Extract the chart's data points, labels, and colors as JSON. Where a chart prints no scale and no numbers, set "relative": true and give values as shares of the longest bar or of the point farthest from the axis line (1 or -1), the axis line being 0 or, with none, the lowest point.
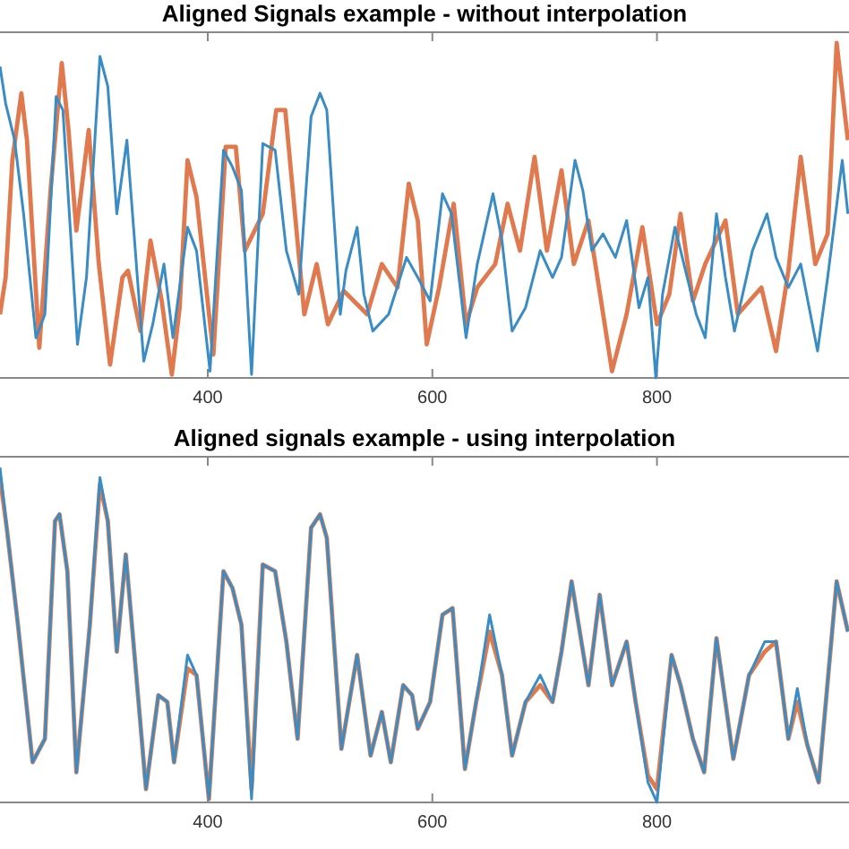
{
  "chart_data": [
    {
      "type": "line",
      "title": "Aligned Signals example - without interpolation",
      "relative": true,
      "tick_labels": "x",
      "xlim": [
        215,
        971
      ],
      "xticks": [
        400,
        600,
        800
      ],
      "series": [
        {
          "color": "#3a8cc4",
          "x": [
            215,
            220,
            228,
            236,
            247,
            255,
            265,
            271,
            284,
            292,
            304,
            311,
            319,
            328,
            333,
            343,
            351,
            361,
            369,
            382,
            390,
            402,
            414,
            422,
            430,
            439,
            449,
            460,
            470,
            481,
            492,
            500,
            506,
            518,
            523,
            533,
            539,
            547,
            561,
            577,
            587,
            598,
            609,
            617,
            630,
            640,
            654,
            662,
            671,
            683,
            696,
            707,
            715,
            727,
            734,
            742,
            752,
            763,
            773,
            784,
            792,
            799,
            805,
            816,
            824,
            835,
            843,
            853,
            861,
            869,
            885,
            898,
            906,
            917,
            928,
            943,
            952,
            965,
            970
          ],
          "values": [
            0.93,
            0.82,
            0.71,
            0.49,
            0.12,
            0.19,
            0.84,
            0.8,
            0.1,
            0.3,
            0.96,
            0.87,
            0.49,
            0.71,
            0.49,
            0.05,
            0.16,
            0.34,
            0.12,
            0.45,
            0.38,
            0.02,
            0.68,
            0.63,
            0.56,
            0.01,
            0.7,
            0.68,
            0.38,
            0.25,
            0.78,
            0.85,
            0.8,
            0.19,
            0.32,
            0.45,
            0.25,
            0.14,
            0.19,
            0.36,
            0.3,
            0.23,
            0.55,
            0.49,
            0.12,
            0.34,
            0.55,
            0.41,
            0.14,
            0.21,
            0.38,
            0.3,
            0.36,
            0.65,
            0.56,
            0.38,
            0.43,
            0.36,
            0.47,
            0.21,
            0.3,
            0,
            0.25,
            0.45,
            0.34,
            0.19,
            0.12,
            0.49,
            0.3,
            0.14,
            0.38,
            0.49,
            0.36,
            0.27,
            0.34,
            0.08,
            0.3,
            0.65,
            0.49
          ]
        },
        {
          "color": "#e07a4e",
          "x": [
            215,
            220,
            226,
            234,
            239,
            250,
            260,
            270,
            276,
            283,
            294,
            303,
            313,
            324,
            329,
            340,
            349,
            359,
            368,
            375,
            382,
            390,
            405,
            416,
            425,
            433,
            449,
            461,
            469,
            486,
            497,
            507,
            521,
            542,
            555,
            569,
            579,
            587,
            595,
            606,
            619,
            630,
            640,
            656,
            667,
            678,
            691,
            702,
            715,
            726,
            739,
            747,
            760,
            773,
            787,
            800,
            811,
            821,
            832,
            843,
            861,
            872,
            893,
            906,
            917,
            928,
            941,
            952,
            960,
            970
          ],
          "values": [
            0.19,
            0.3,
            0.65,
            0.85,
            0.71,
            0.09,
            0.56,
            0.94,
            0.74,
            0.44,
            0.74,
            0.34,
            0.04,
            0.3,
            0.32,
            0.14,
            0.41,
            0.23,
            0.01,
            0.21,
            0.65,
            0.54,
            0.07,
            0.69,
            0.69,
            0.38,
            0.49,
            0.8,
            0.8,
            0.19,
            0.34,
            0.16,
            0.26,
            0.19,
            0.34,
            0.27,
            0.58,
            0.47,
            0.1,
            0.27,
            0.52,
            0.16,
            0.27,
            0.34,
            0.52,
            0.38,
            0.66,
            0.38,
            0.62,
            0.34,
            0.47,
            0.3,
            0.02,
            0.19,
            0.45,
            0.16,
            0.25,
            0.49,
            0.23,
            0.34,
            0.47,
            0.19,
            0.27,
            0.08,
            0.32,
            0.66,
            0.34,
            0.43,
            1,
            0.71
          ]
        }
      ]
    },
    {
      "type": "line",
      "title": "Aligned signals example - using interpolation",
      "relative": true,
      "tick_labels": "x",
      "xlim": [
        215,
        971
      ],
      "xticks": [
        400,
        600,
        800
      ],
      "x": [
        215,
        221,
        231,
        244,
        255,
        264,
        268,
        275,
        283,
        295,
        304,
        311,
        319,
        327,
        333,
        345,
        356,
        364,
        370,
        382,
        390,
        401,
        414,
        422,
        430,
        439,
        449,
        460,
        470,
        480,
        492,
        500,
        506,
        519,
        533,
        545,
        555,
        563,
        574,
        582,
        587,
        598,
        609,
        618,
        629,
        639,
        651,
        662,
        671,
        683,
        696,
        707,
        715,
        724,
        739,
        749,
        760,
        773,
        781,
        792,
        800,
        813,
        821,
        832,
        842,
        853,
        868,
        882,
        896,
        906,
        917,
        925,
        934,
        944,
        960,
        970
      ],
      "series": [
        {
          "color": "#3a8cc4",
          "values": [
            1,
            0.82,
            0.53,
            0.12,
            0.19,
            0.84,
            0.86,
            0.69,
            0.09,
            0.53,
            0.97,
            0.84,
            0.45,
            0.74,
            0.51,
            0.04,
            0.32,
            0.3,
            0.12,
            0.44,
            0.38,
            0.01,
            0.69,
            0.64,
            0.53,
            0.01,
            0.71,
            0.69,
            0.48,
            0.19,
            0.82,
            0.86,
            0.79,
            0.16,
            0.44,
            0.14,
            0.27,
            0.12,
            0.35,
            0.32,
            0.22,
            0.3,
            0.56,
            0.58,
            0.1,
            0.3,
            0.56,
            0.38,
            0.14,
            0.3,
            0.38,
            0.3,
            0.45,
            0.66,
            0.35,
            0.62,
            0.35,
            0.48,
            0.3,
            0.06,
            0,
            0.44,
            0.35,
            0.19,
            0.09,
            0.49,
            0.13,
            0.38,
            0.48,
            0.48,
            0.19,
            0.34,
            0.17,
            0.06,
            0.66,
            0.51
          ]
        },
        {
          "color": "#e07a4e",
          "values": [
            0.97,
            0.82,
            0.53,
            0.12,
            0.19,
            0.84,
            0.86,
            0.69,
            0.09,
            0.53,
            0.95,
            0.84,
            0.45,
            0.74,
            0.51,
            0.04,
            0.32,
            0.3,
            0.12,
            0.4,
            0.38,
            0.01,
            0.69,
            0.64,
            0.53,
            0.04,
            0.71,
            0.69,
            0.48,
            0.19,
            0.82,
            0.86,
            0.79,
            0.16,
            0.44,
            0.14,
            0.27,
            0.12,
            0.35,
            0.32,
            0.22,
            0.3,
            0.56,
            0.58,
            0.1,
            0.3,
            0.51,
            0.38,
            0.14,
            0.3,
            0.35,
            0.3,
            0.45,
            0.66,
            0.35,
            0.62,
            0.35,
            0.48,
            0.3,
            0.08,
            0.04,
            0.44,
            0.35,
            0.19,
            0.09,
            0.49,
            0.13,
            0.38,
            0.45,
            0.48,
            0.19,
            0.3,
            0.17,
            0.06,
            0.66,
            0.51
          ]
        }
      ]
    }
  ]
}
